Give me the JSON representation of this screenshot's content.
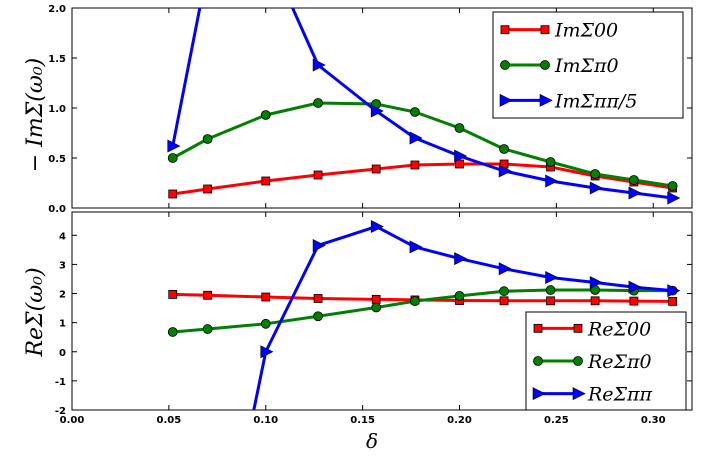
{
  "chart_data": [
    {
      "type": "line",
      "ylabel": "− ImΣ(ω₀)",
      "ylim": [
        0,
        2.0
      ],
      "xlim": [
        0,
        0.32
      ],
      "yticks": [
        "0.0",
        "0.5",
        "1.0",
        "1.5",
        "2.0"
      ],
      "legend_position": "top-right",
      "series": [
        {
          "name": "ImΣ00",
          "color": "#ff0000",
          "marker": "square",
          "x": [
            0.052,
            0.07,
            0.1,
            0.127,
            0.157,
            0.177,
            0.2,
            0.223,
            0.247,
            0.27,
            0.29,
            0.31
          ],
          "y": [
            0.14,
            0.19,
            0.27,
            0.33,
            0.39,
            0.43,
            0.44,
            0.44,
            0.41,
            0.32,
            0.26,
            0.2
          ]
        },
        {
          "name": "ImΣπ0",
          "color": "#007f00",
          "marker": "circle",
          "x": [
            0.052,
            0.07,
            0.1,
            0.127,
            0.157,
            0.177,
            0.2,
            0.223,
            0.247,
            0.27,
            0.29,
            0.31
          ],
          "y": [
            0.5,
            0.69,
            0.93,
            1.05,
            1.04,
            0.96,
            0.8,
            0.59,
            0.46,
            0.34,
            0.28,
            0.22
          ]
        },
        {
          "name": "ImΣππ/5",
          "color": "#0000ff",
          "marker": "triangle-right",
          "x": [
            0.052,
            0.07,
            0.1,
            0.127,
            0.157,
            0.177,
            0.2,
            0.223,
            0.247,
            0.27,
            0.29,
            0.31
          ],
          "y": [
            0.62,
            2.4,
            2.6,
            1.43,
            0.97,
            0.7,
            0.52,
            0.37,
            0.27,
            0.2,
            0.15,
            0.1
          ]
        }
      ]
    },
    {
      "type": "line",
      "ylabel": "ReΣ(ω₀)",
      "xlabel": "δ",
      "ylim": [
        -2,
        4.8
      ],
      "xlim": [
        0,
        0.32
      ],
      "yticks": [
        "-2",
        "-1",
        "0",
        "1",
        "2",
        "3",
        "4"
      ],
      "xticks": [
        "0.00",
        "0.05",
        "0.10",
        "0.15",
        "0.20",
        "0.25",
        "0.30"
      ],
      "legend_position": "bottom-right",
      "series": [
        {
          "name": "ReΣ00",
          "color": "#ff0000",
          "marker": "square",
          "x": [
            0.052,
            0.07,
            0.1,
            0.127,
            0.157,
            0.177,
            0.2,
            0.223,
            0.247,
            0.27,
            0.29,
            0.31
          ],
          "y": [
            1.97,
            1.94,
            1.88,
            1.83,
            1.8,
            1.78,
            1.76,
            1.75,
            1.75,
            1.75,
            1.74,
            1.73
          ]
        },
        {
          "name": "ReΣπ0",
          "color": "#007f00",
          "marker": "circle",
          "x": [
            0.052,
            0.07,
            0.1,
            0.127,
            0.157,
            0.177,
            0.2,
            0.223,
            0.247,
            0.27,
            0.29,
            0.31
          ],
          "y": [
            0.68,
            0.78,
            0.96,
            1.22,
            1.52,
            1.74,
            1.92,
            2.08,
            2.12,
            2.12,
            2.1,
            2.1
          ]
        },
        {
          "name": "ReΣππ",
          "color": "#0000ff",
          "marker": "triangle-right",
          "x": [
            0.092,
            0.1,
            0.127,
            0.157,
            0.177,
            0.2,
            0.223,
            0.247,
            0.27,
            0.29,
            0.31
          ],
          "y": [
            -2.6,
            0.0,
            3.65,
            4.3,
            3.6,
            3.2,
            2.85,
            2.55,
            2.38,
            2.22,
            2.1
          ]
        }
      ]
    }
  ]
}
